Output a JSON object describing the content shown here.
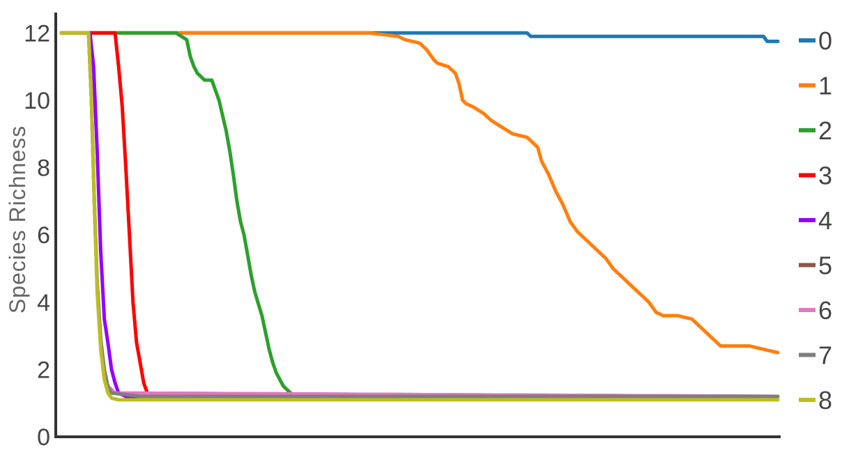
{
  "chart_data": {
    "type": "line",
    "title": "",
    "xlabel": "",
    "ylabel": "Species Richness",
    "ylim": [
      0,
      12.4
    ],
    "xlim": [
      0,
      1000
    ],
    "yticks": [
      "0",
      "2",
      "4",
      "6",
      "8",
      "10",
      "12"
    ],
    "grid": false,
    "legend_position": "right",
    "series": [
      {
        "name": "0",
        "color": "#1f77b4",
        "x": [
          0,
          430,
          650,
          655,
          980,
          985,
          1000
        ],
        "y": [
          12,
          12,
          12,
          11.9,
          11.9,
          11.75,
          11.75
        ]
      },
      {
        "name": "1",
        "color": "#ff7f0e",
        "x": [
          0,
          430,
          470,
          480,
          500,
          505,
          510,
          520,
          525,
          540,
          550,
          555,
          560,
          565,
          575,
          590,
          600,
          615,
          630,
          650,
          665,
          670,
          680,
          690,
          700,
          710,
          720,
          730,
          740,
          750,
          760,
          770,
          780,
          790,
          800,
          810,
          820,
          830,
          840,
          860,
          880,
          890,
          900,
          910,
          920,
          940,
          960,
          1000
        ],
        "y": [
          12,
          12,
          11.9,
          11.8,
          11.7,
          11.6,
          11.5,
          11.2,
          11.1,
          11.0,
          10.8,
          10.5,
          10.0,
          9.9,
          9.8,
          9.6,
          9.4,
          9.2,
          9.0,
          8.9,
          8.6,
          8.2,
          7.8,
          7.3,
          6.9,
          6.4,
          6.1,
          5.9,
          5.7,
          5.5,
          5.3,
          5.0,
          4.8,
          4.6,
          4.4,
          4.2,
          4.0,
          3.7,
          3.6,
          3.6,
          3.5,
          3.3,
          3.1,
          2.9,
          2.7,
          2.7,
          2.7,
          2.5
        ]
      },
      {
        "name": "2",
        "color": "#2ca02c",
        "x": [
          0,
          160,
          175,
          180,
          185,
          190,
          200,
          210,
          215,
          220,
          230,
          235,
          240,
          245,
          250,
          255,
          260,
          265,
          270,
          280,
          285,
          290,
          295,
          300,
          305,
          310,
          320,
          330,
          340
        ],
        "y": [
          12,
          12,
          11.8,
          11.3,
          11.0,
          10.8,
          10.6,
          10.6,
          10.3,
          10.0,
          9.1,
          8.5,
          7.8,
          7.0,
          6.4,
          6.0,
          5.4,
          4.8,
          4.3,
          3.6,
          3.1,
          2.6,
          2.2,
          1.9,
          1.7,
          1.5,
          1.3,
          1.2,
          1.2
        ]
      },
      {
        "name": "3",
        "color": "#ff0000",
        "x": [
          0,
          45,
          75,
          80,
          85,
          90,
          95,
          100,
          105,
          110,
          115,
          120,
          125,
          130,
          1000
        ],
        "y": [
          12,
          12,
          12,
          11.0,
          9.8,
          8.0,
          6.0,
          4.0,
          2.8,
          2.2,
          1.6,
          1.3,
          1.2,
          1.2,
          1.2
        ]
      },
      {
        "name": "4",
        "color": "#9400ff",
        "x": [
          0,
          40,
          45,
          50,
          55,
          60,
          65,
          70,
          75,
          80,
          90,
          1000
        ],
        "y": [
          12,
          12,
          11.0,
          8.5,
          5.5,
          3.5,
          2.8,
          2.0,
          1.6,
          1.3,
          1.2,
          1.2
        ]
      },
      {
        "name": "5",
        "color": "#8c564b",
        "x": [
          0,
          38,
          42,
          46,
          50,
          55,
          60,
          65,
          70,
          1000
        ],
        "y": [
          12,
          12,
          10.0,
          7.0,
          4.5,
          2.8,
          1.8,
          1.4,
          1.3,
          1.2
        ]
      },
      {
        "name": "6",
        "color": "#e377c2",
        "x": [
          0,
          38,
          42,
          46,
          50,
          55,
          60,
          65,
          75,
          1000
        ],
        "y": [
          12,
          12,
          10.0,
          7.0,
          4.5,
          2.8,
          1.9,
          1.5,
          1.3,
          1.2
        ]
      },
      {
        "name": "7",
        "color": "#7f7f7f",
        "x": [
          0,
          38,
          42,
          46,
          50,
          55,
          60,
          65,
          70,
          110,
          1000
        ],
        "y": [
          12,
          12,
          10.0,
          7.0,
          4.6,
          2.9,
          2.0,
          1.5,
          1.3,
          1.2,
          1.2
        ]
      },
      {
        "name": "8",
        "color": "#bcbd22",
        "x": [
          0,
          38,
          42,
          46,
          50,
          55,
          60,
          65,
          70,
          80,
          1000
        ],
        "y": [
          12,
          12,
          10.0,
          7.0,
          4.3,
          2.6,
          1.7,
          1.3,
          1.15,
          1.1,
          1.1
        ]
      }
    ]
  }
}
